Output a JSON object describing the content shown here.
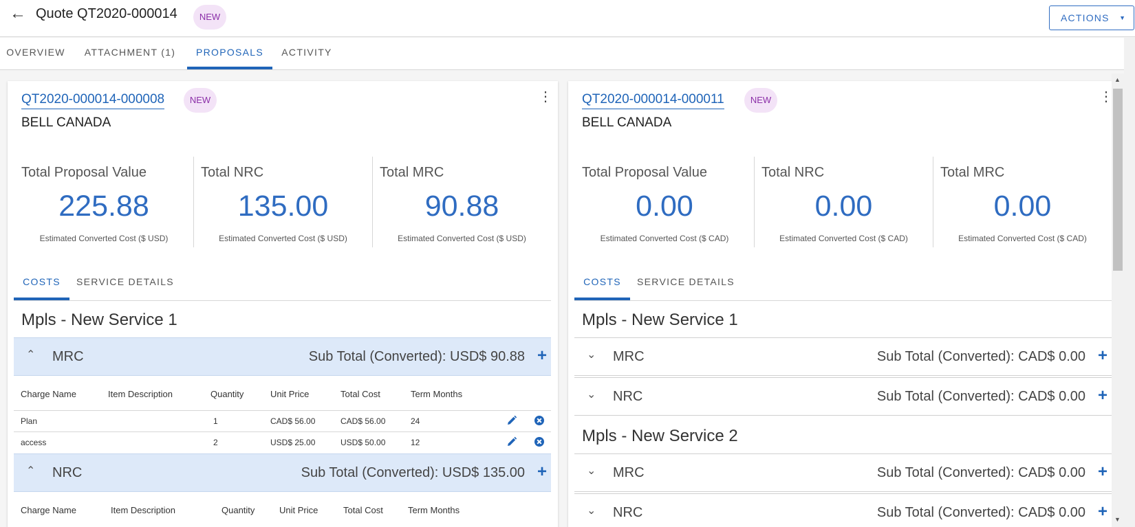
{
  "header": {
    "back_icon": "arrow-left-icon",
    "title": "Quote QT2020-000014",
    "status": "NEW",
    "actions_label": "ACTIONS"
  },
  "tabs": [
    {
      "label": "OVERVIEW"
    },
    {
      "label": "ATTACHMENT (1)"
    },
    {
      "label": "PROPOSALS"
    },
    {
      "label": "ACTIVITY"
    }
  ],
  "active_tab": "PROPOSALS",
  "colors": {
    "accent": "#1f64b8",
    "value_blue": "#2f6cc1",
    "badge_bg": "#f3e3f7",
    "badge_text": "#8b2fa8",
    "section_open_bg": "#dde9f9"
  },
  "proposals": [
    {
      "id": "QT2020-000014-000008",
      "status": "NEW",
      "company": "BELL CANADA",
      "metrics": [
        {
          "label": "Total Proposal Value",
          "value": "225.88",
          "sub": "Estimated Converted Cost ($ USD)"
        },
        {
          "label": "Total NRC",
          "value": "135.00",
          "sub": "Estimated Converted Cost ($ USD)"
        },
        {
          "label": "Total MRC",
          "value": "90.88",
          "sub": "Estimated Converted Cost ($ USD)"
        }
      ],
      "inner_tabs": [
        {
          "label": "COSTS"
        },
        {
          "label": "SERVICE DETAILS"
        }
      ],
      "service": "Mpls - New Service 1",
      "mrc": {
        "name": "MRC",
        "subtotal": "Sub Total (Converted): USD$ 90.88",
        "columns": [
          "Charge Name",
          "Item Description",
          "Quantity",
          "Unit Price",
          "Total Cost",
          "Term Months"
        ],
        "rows": [
          {
            "charge": "Plan",
            "description": "",
            "quantity": "1",
            "unit_price": "CAD$ 56.00",
            "total_cost": "CAD$ 56.00",
            "term": "24"
          },
          {
            "charge": "access",
            "description": "",
            "quantity": "2",
            "unit_price": "USD$ 25.00",
            "total_cost": "USD$ 50.00",
            "term": "12"
          }
        ]
      },
      "nrc": {
        "name": "NRC",
        "subtotal": "Sub Total (Converted): USD$ 135.00",
        "columns": [
          "Charge Name",
          "Item Description",
          "Quantity",
          "Unit Price",
          "Total Cost",
          "Term Months"
        ]
      }
    },
    {
      "id": "QT2020-000014-000011",
      "status": "NEW",
      "company": "BELL CANADA",
      "metrics": [
        {
          "label": "Total Proposal Value",
          "value": "0.00",
          "sub": "Estimated Converted Cost ($ CAD)"
        },
        {
          "label": "Total NRC",
          "value": "0.00",
          "sub": "Estimated Converted Cost ($ CAD)"
        },
        {
          "label": "Total MRC",
          "value": "0.00",
          "sub": "Estimated Converted Cost ($ CAD)"
        }
      ],
      "inner_tabs": [
        {
          "label": "COSTS"
        },
        {
          "label": "SERVICE DETAILS"
        }
      ],
      "services": [
        {
          "title": "Mpls - New Service 1",
          "sections": [
            {
              "name": "MRC",
              "subtotal": "Sub Total (Converted): CAD$ 0.00"
            },
            {
              "name": "NRC",
              "subtotal": "Sub Total (Converted): CAD$ 0.00"
            }
          ]
        },
        {
          "title": "Mpls - New Service 2",
          "sections": [
            {
              "name": "MRC",
              "subtotal": "Sub Total (Converted): CAD$ 0.00"
            },
            {
              "name": "NRC",
              "subtotal": "Sub Total (Converted): CAD$ 0.00"
            }
          ]
        }
      ]
    }
  ]
}
